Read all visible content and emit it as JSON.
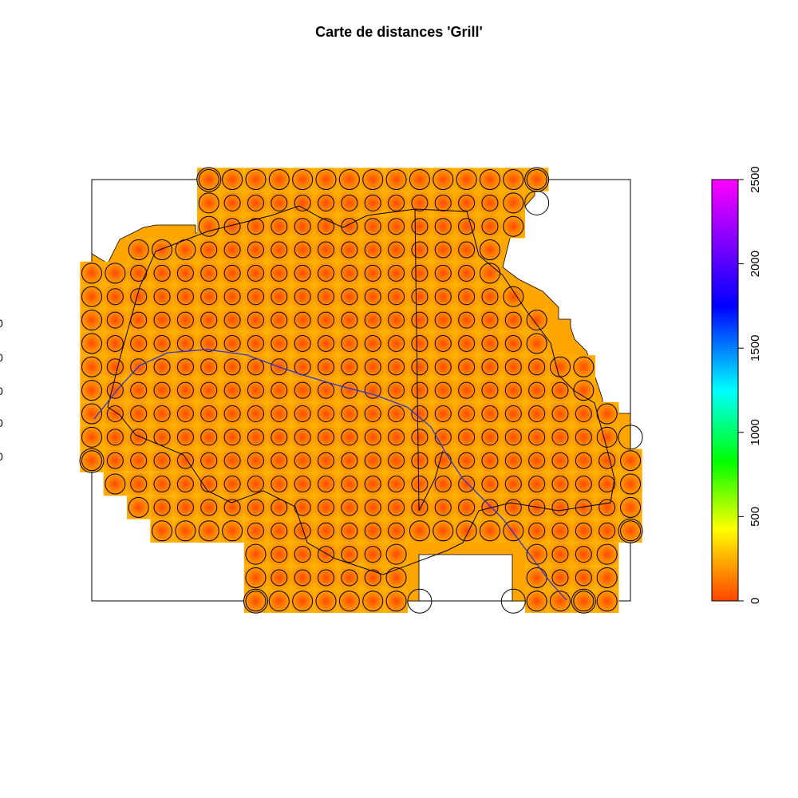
{
  "chart_data": {
    "type": "heatmap",
    "title": "Carte de distances 'Grill'",
    "xlabel": "",
    "ylabel": "",
    "legend": {
      "position": "right",
      "min": 0,
      "max": 2500,
      "ticks": [
        0,
        500,
        1000,
        1500,
        2000,
        2500
      ],
      "tick_labels": [
        "0",
        "500",
        "1000",
        "1500",
        "2000",
        "2500"
      ],
      "palette": [
        "#ff4500",
        "#ffa500",
        "#ffff00",
        "#00ff00",
        "#00ffff",
        "#0000ff",
        "#ff00ff"
      ]
    },
    "value_range_shown": [
      0,
      400
    ],
    "grid": {
      "rows": 19,
      "cols": 24,
      "row_extents": [
        [
          5,
          19
        ],
        [
          5,
          18
        ],
        [
          5,
          18
        ],
        [
          2,
          17
        ],
        [
          0,
          17
        ],
        [
          0,
          18
        ],
        [
          0,
          19
        ],
        [
          0,
          19
        ],
        [
          0,
          21
        ],
        [
          0,
          21
        ],
        [
          0,
          22
        ],
        [
          0,
          22
        ],
        [
          0,
          23
        ],
        [
          1,
          23
        ],
        [
          2,
          23
        ],
        [
          3,
          23
        ],
        [
          7,
          22
        ],
        [
          7,
          22
        ],
        [
          7,
          22
        ]
      ],
      "holes": [
        {
          "rows": [
            16,
            18
          ],
          "cols": [
            14,
            18
          ]
        }
      ]
    },
    "point_marker": "circle",
    "edge_marker": "large circle",
    "outline_color": "#000000",
    "path_color": "#3333cc"
  }
}
